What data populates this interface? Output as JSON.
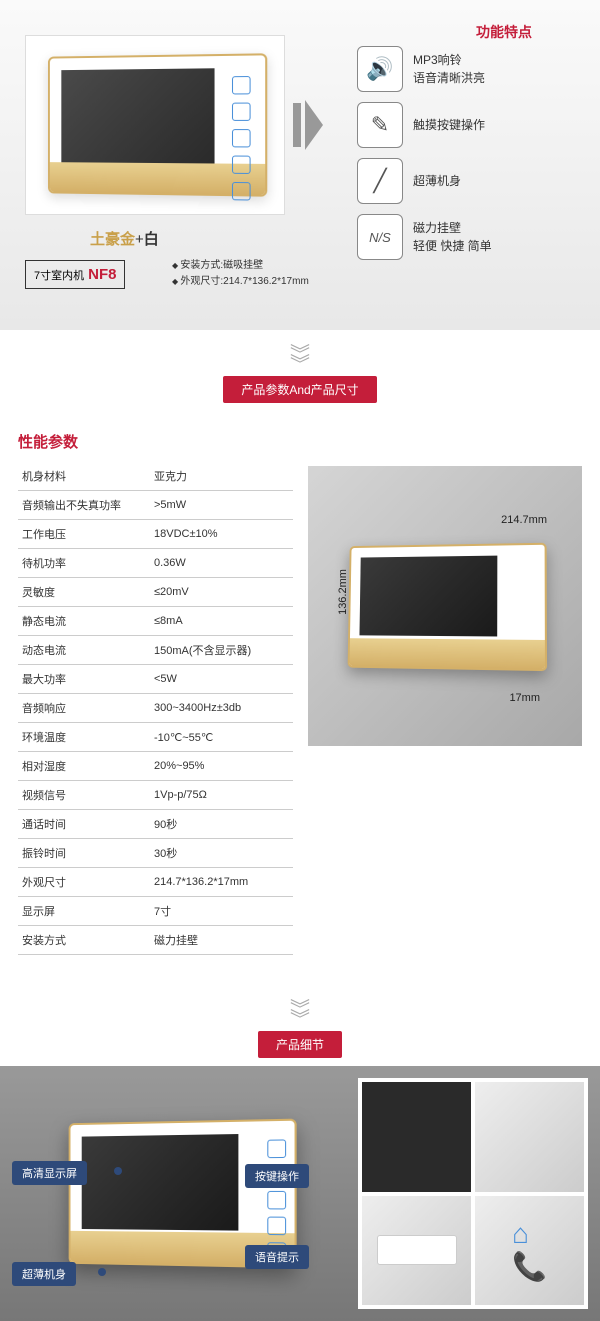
{
  "section1": {
    "feat_title": "功能特点",
    "subtitle_gold": "土豪金",
    "subtitle_plus": "+",
    "subtitle_white": "白",
    "badge_prefix": "7寸室内机",
    "badge_model": "NF8",
    "install1": "安装方式:磁吸挂壁",
    "install2": "外观尺寸:214.7*136.2*17mm",
    "features": [
      {
        "icon": "🔊",
        "line1": "MP3响铃",
        "line2": "语音清晰洪亮"
      },
      {
        "icon": "✎",
        "line1": "触摸按键操作",
        "line2": ""
      },
      {
        "icon": "╱",
        "line1": "超薄机身",
        "line2": ""
      },
      {
        "icon": "N/S",
        "line1": "磁力挂壁",
        "line2": "轻便 快捷 简单"
      }
    ]
  },
  "sep1_label": "产品参数And产品尺寸",
  "section2": {
    "spec_title": "性能参数",
    "specs": [
      [
        "机身材料",
        "亚克力"
      ],
      [
        "音频输出不失真功率",
        ">5mW"
      ],
      [
        "工作电压",
        "18VDC±10%"
      ],
      [
        "待机功率",
        "0.36W"
      ],
      [
        "灵敏度",
        "≤20mV"
      ],
      [
        "静态电流",
        "≤8mA"
      ],
      [
        "动态电流",
        "150mA(不含显示器)"
      ],
      [
        "最大功率",
        "<5W"
      ],
      [
        "音频响应",
        "300~3400Hz±3db"
      ],
      [
        "环境温度",
        "-10℃~55℃"
      ],
      [
        "相对湿度",
        "20%~95%"
      ],
      [
        "视频信号",
        "1Vp-p/75Ω"
      ],
      [
        "通话时间",
        "90秒"
      ],
      [
        "振铃时间",
        "30秒"
      ],
      [
        "外观尺寸",
        "214.7*136.2*17mm"
      ],
      [
        "显示屏",
        "7寸"
      ],
      [
        "安装方式",
        "磁力挂壁"
      ]
    ],
    "dim_w": "214.7mm",
    "dim_h": "136.2mm",
    "dim_d": "17mm"
  },
  "sep2_label": "产品细节",
  "section3": {
    "c1": "高清显示屏",
    "c2": "超薄机身",
    "c3": "按键操作",
    "c4": "语音提示"
  },
  "colors": {
    "accent_red": "#c41e3a",
    "gold": "#d4b068",
    "blue_badge": "#2e4a7a",
    "icon_blue": "#4a90d9"
  }
}
